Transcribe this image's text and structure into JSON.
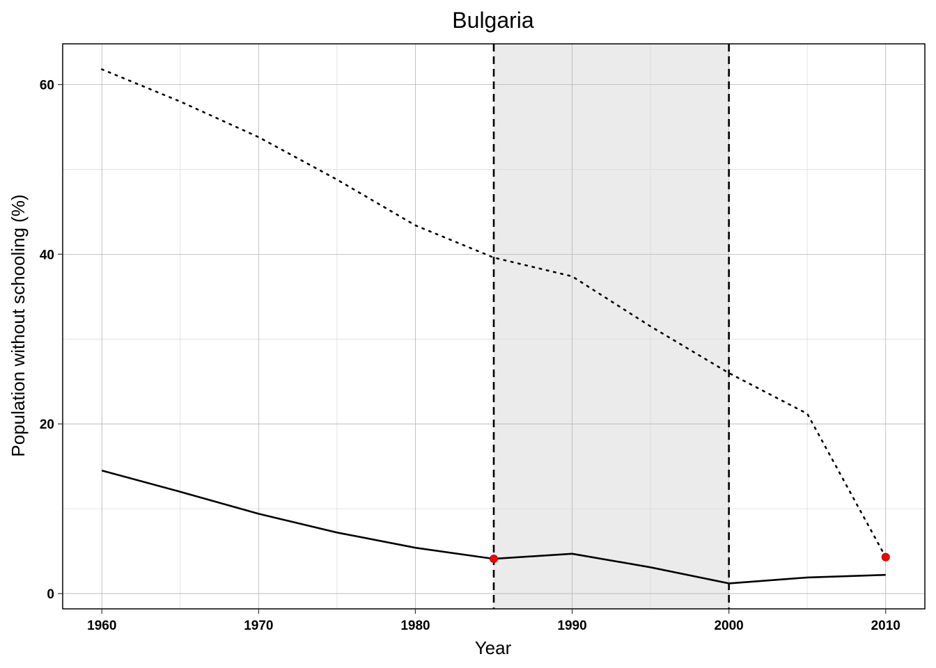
{
  "chart_data": {
    "type": "line",
    "title": "Bulgaria",
    "xlabel": "Year",
    "ylabel": "Population without schooling (%)",
    "xlim": [
      1957.5,
      2012.5
    ],
    "ylim": [
      -1.8,
      64.8
    ],
    "x_ticks": [
      1960,
      1970,
      1980,
      1990,
      2000,
      2010
    ],
    "y_ticks": [
      0,
      20,
      40,
      60
    ],
    "grid": true,
    "shaded_region": {
      "x_start": 1985,
      "x_end": 2000,
      "color": "#ebebeb"
    },
    "vertical_lines": [
      1985,
      2000
    ],
    "series": [
      {
        "style": "dotted",
        "color": "#000000",
        "x": [
          1960,
          1965,
          1970,
          1975,
          1980,
          1985,
          1990,
          1995,
          2000,
          2005,
          2010
        ],
        "values": [
          61.8,
          58.0,
          53.8,
          48.8,
          43.4,
          39.6,
          37.4,
          31.5,
          26.0,
          21.2,
          4.3
        ]
      },
      {
        "style": "solid",
        "color": "#000000",
        "x": [
          1960,
          1965,
          1970,
          1975,
          1980,
          1985,
          1990,
          1995,
          2000,
          2005,
          2010
        ],
        "values": [
          14.5,
          12.0,
          9.4,
          7.2,
          5.4,
          4.1,
          4.7,
          3.1,
          1.2,
          1.9,
          2.2
        ]
      }
    ],
    "highlight_points": [
      {
        "x": 1985,
        "y": 4.1,
        "color": "#ff0000"
      },
      {
        "x": 2010,
        "y": 4.3,
        "color": "#ff0000"
      }
    ]
  }
}
